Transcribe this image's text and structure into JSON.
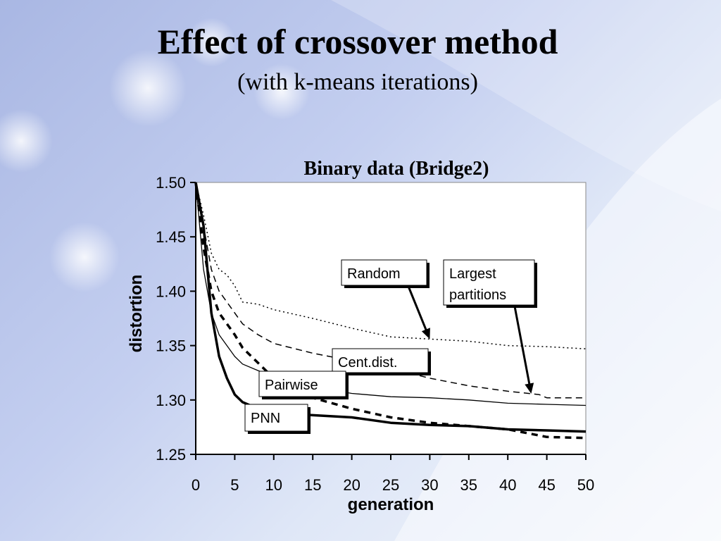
{
  "slide": {
    "title": "Effect of crossover method",
    "subtitle": "(with k-means iterations)"
  },
  "colors": {
    "background": "#c4cff0",
    "plot_area": "#ffffff",
    "series": "#000000"
  },
  "chart_data": {
    "type": "line",
    "title": "Binary data (Bridge2)",
    "xlabel": "generation",
    "ylabel": "distortion",
    "xlim": [
      0,
      50
    ],
    "ylim": [
      1.25,
      1.5
    ],
    "x_ticks": [
      "0",
      "5",
      "10",
      "15",
      "20",
      "25",
      "30",
      "35",
      "40",
      "45",
      "50"
    ],
    "y_ticks": [
      "1.50",
      "1.45",
      "1.40",
      "1.35",
      "1.30",
      "1.25"
    ],
    "grid": false,
    "legend": "callout labels",
    "series": [
      {
        "name": "Random",
        "style": "dotted",
        "x": [
          0,
          1,
          2,
          3,
          4,
          5,
          6,
          8,
          10,
          15,
          20,
          25,
          30,
          35,
          40,
          45,
          50
        ],
        "y": [
          1.5,
          1.47,
          1.435,
          1.42,
          1.415,
          1.405,
          1.39,
          1.388,
          1.383,
          1.375,
          1.366,
          1.358,
          1.356,
          1.354,
          1.35,
          1.349,
          1.347
        ]
      },
      {
        "name": "Largest partitions",
        "style": "dashed",
        "x": [
          0,
          1,
          2,
          3,
          4,
          5,
          6,
          8,
          10,
          15,
          20,
          25,
          30,
          35,
          40,
          44,
          45,
          50
        ],
        "y": [
          1.5,
          1.46,
          1.42,
          1.4,
          1.39,
          1.38,
          1.37,
          1.36,
          1.352,
          1.343,
          1.336,
          1.329,
          1.32,
          1.313,
          1.308,
          1.305,
          1.302,
          1.302
        ]
      },
      {
        "name": "Cent.dist.",
        "style": "thin",
        "x": [
          0,
          1,
          2,
          3,
          4,
          5,
          6,
          8,
          10,
          15,
          20,
          25,
          30,
          35,
          40,
          45,
          50
        ],
        "y": [
          1.5,
          1.42,
          1.38,
          1.36,
          1.35,
          1.34,
          1.333,
          1.327,
          1.322,
          1.312,
          1.306,
          1.303,
          1.302,
          1.3,
          1.297,
          1.296,
          1.295
        ]
      },
      {
        "name": "Pairwise",
        "style": "bold-dashed",
        "x": [
          0,
          1,
          2,
          3,
          4,
          5,
          6,
          8,
          10,
          15,
          20,
          25,
          30,
          35,
          40,
          45,
          50
        ],
        "y": [
          1.5,
          1.44,
          1.4,
          1.38,
          1.37,
          1.36,
          1.348,
          1.334,
          1.32,
          1.302,
          1.292,
          1.284,
          1.279,
          1.276,
          1.273,
          1.266,
          1.265
        ]
      },
      {
        "name": "PNN",
        "style": "bold",
        "x": [
          0,
          1,
          2,
          3,
          4,
          5,
          6,
          8,
          10,
          15,
          20,
          25,
          30,
          35,
          40,
          45,
          50
        ],
        "y": [
          1.5,
          1.46,
          1.38,
          1.34,
          1.32,
          1.305,
          1.298,
          1.292,
          1.288,
          1.286,
          1.284,
          1.279,
          1.277,
          1.276,
          1.273,
          1.272,
          1.271
        ]
      }
    ],
    "callouts": [
      {
        "text": [
          "Random"
        ],
        "series": "Random",
        "target_x": 30
      },
      {
        "text": [
          "Largest",
          "partitions"
        ],
        "series": "Largest partitions",
        "target_x": 43
      },
      {
        "text": [
          "Cent.dist."
        ],
        "series": "Cent.dist."
      },
      {
        "text": [
          "Pairwise"
        ],
        "series": "Pairwise"
      },
      {
        "text": [
          "PNN"
        ],
        "series": "PNN"
      }
    ]
  }
}
